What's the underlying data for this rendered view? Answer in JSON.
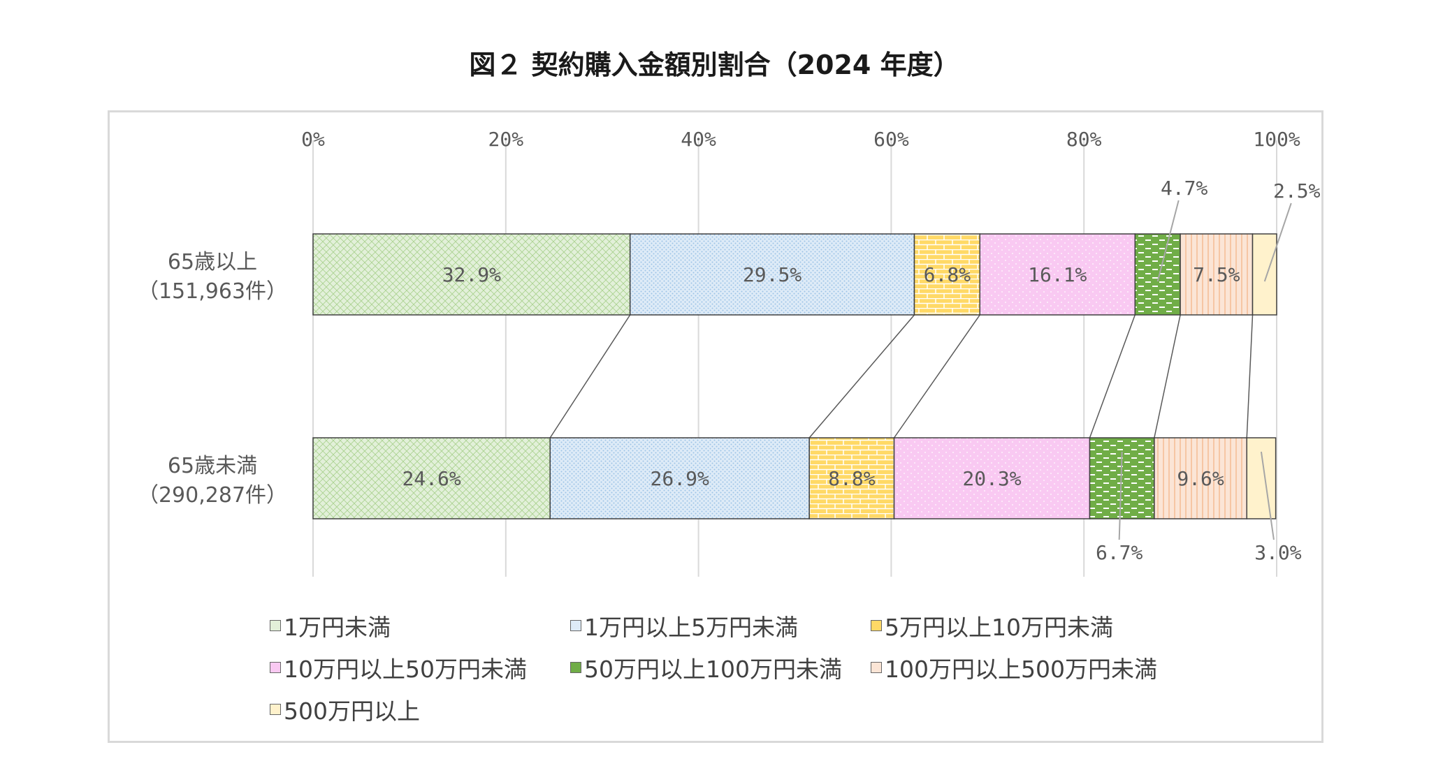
{
  "title": "図２ 契約購入金額別割合（2024 年度）",
  "colors": {
    "cat0": "#e2f0d9",
    "cat1": "#deebf7",
    "cat2": "#ffd966",
    "cat3": "#f9c9f2",
    "cat4": "#70ad47",
    "cat5": "#fbe5d6",
    "cat6": "#fff2cc"
  },
  "chart_data": {
    "type": "bar",
    "orientation": "horizontal",
    "stacked": "100%",
    "title": "図２ 契約購入金額別割合（2024 年度）",
    "x_ticks": [
      "0%",
      "20%",
      "40%",
      "60%",
      "80%",
      "100%"
    ],
    "xlim": [
      0,
      100
    ],
    "grid": true,
    "legend_position": "bottom",
    "categories": [
      {
        "name": "65歳以上",
        "count": "（151,963件）"
      },
      {
        "name": "65歳未満",
        "count": "（290,287件）"
      }
    ],
    "series": [
      {
        "name": "1万円未満",
        "values": [
          32.9,
          24.6
        ],
        "labels": [
          "32.9%",
          "24.6%"
        ]
      },
      {
        "name": "1万円以上5万円未満",
        "values": [
          29.5,
          26.9
        ],
        "labels": [
          "29.5%",
          "26.9%"
        ]
      },
      {
        "name": "5万円以上10万円未満",
        "values": [
          6.8,
          8.8
        ],
        "labels": [
          "6.8%",
          "8.8%"
        ]
      },
      {
        "name": "10万円以上50万円未満",
        "values": [
          16.1,
          20.3
        ],
        "labels": [
          "16.1%",
          "20.3%"
        ]
      },
      {
        "name": "50万円以上100万円未満",
        "values": [
          4.7,
          6.7
        ],
        "labels": [
          "4.7%",
          "6.7%"
        ]
      },
      {
        "name": "100万円以上500万円未満",
        "values": [
          7.5,
          9.6
        ],
        "labels": [
          "7.5%",
          "9.6%"
        ]
      },
      {
        "name": "500万円以上",
        "values": [
          2.5,
          3.0
        ],
        "labels": [
          "2.5%",
          "3.0%"
        ]
      }
    ]
  }
}
